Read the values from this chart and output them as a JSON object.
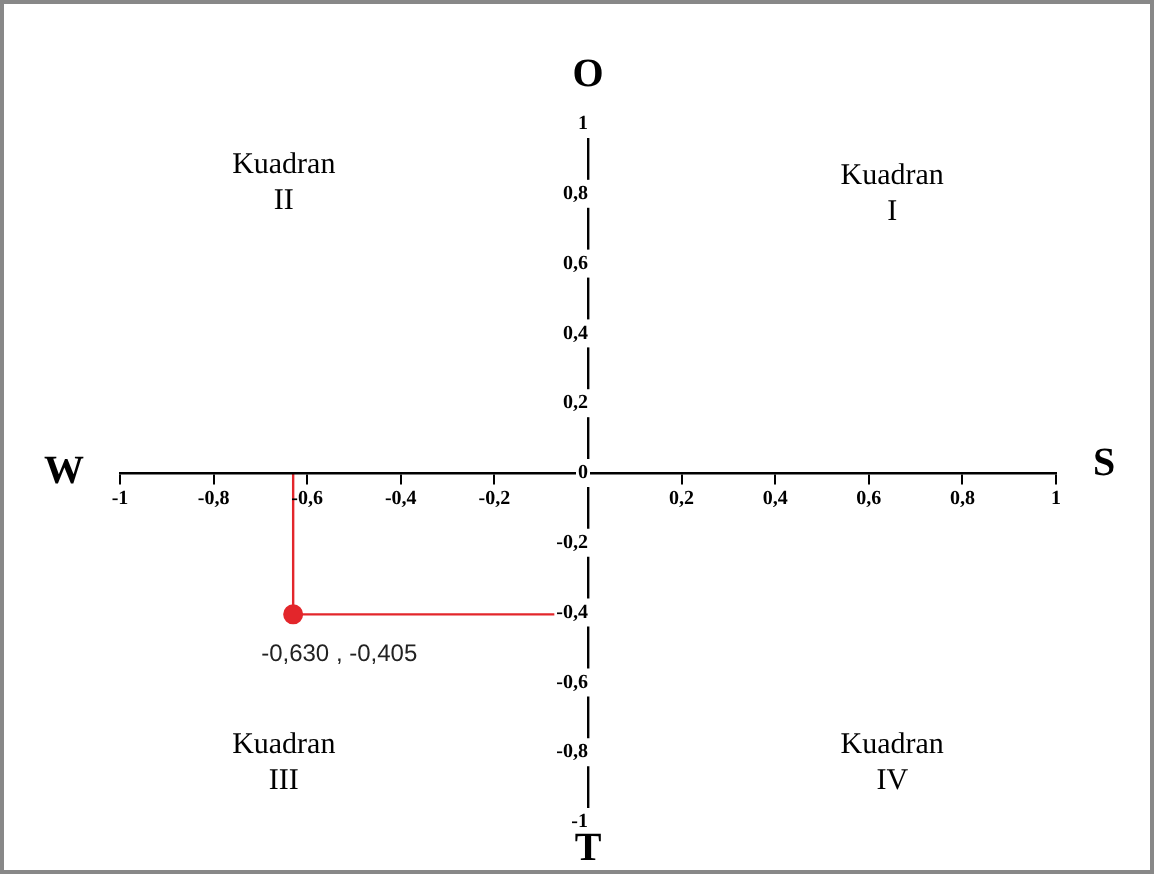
{
  "chart_data": {
    "type": "scatter",
    "x": [
      -0.63
    ],
    "values": [
      -0.405
    ],
    "color": "#e3262b",
    "value_labels": [
      "-0,630 , -0,405"
    ],
    "marker": "circle",
    "legend": false,
    "grid": false,
    "xlim": [
      -1,
      1
    ],
    "ylim": [
      -1,
      1
    ],
    "xticks": [
      {
        "value": -1,
        "label": "-1"
      },
      {
        "value": -0.8,
        "label": "-0,8"
      },
      {
        "value": -0.6,
        "label": "-0,6"
      },
      {
        "value": -0.4,
        "label": "-0,4"
      },
      {
        "value": -0.2,
        "label": "-0,2"
      },
      {
        "value": 0,
        "label": null
      },
      {
        "value": 0.2,
        "label": "0,2"
      },
      {
        "value": 0.4,
        "label": "0,4"
      },
      {
        "value": 0.6,
        "label": "0,6"
      },
      {
        "value": 0.8,
        "label": "0,8"
      },
      {
        "value": 1,
        "label": "1"
      }
    ],
    "yticks": [
      {
        "value": -1,
        "label": "-1"
      },
      {
        "value": -0.8,
        "label": "-0,8"
      },
      {
        "value": -0.6,
        "label": "-0,6"
      },
      {
        "value": -0.4,
        "label": "-0,4"
      },
      {
        "value": -0.2,
        "label": "-0,2"
      },
      {
        "value": 0,
        "label": "0"
      },
      {
        "value": 0.2,
        "label": "0,2"
      },
      {
        "value": 0.4,
        "label": "0,4"
      },
      {
        "value": 0.6,
        "label": "0,6"
      },
      {
        "value": 0.8,
        "label": "0,8"
      },
      {
        "value": 1,
        "label": "1"
      }
    ],
    "ref_lines": [
      {
        "axis": "x",
        "value": -0.63,
        "color": "#e3262b"
      },
      {
        "axis": "y",
        "value": -0.405,
        "color": "#e3262b"
      }
    ],
    "annotations": [
      "W",
      "S",
      "O",
      "T",
      "Kuadran\nI",
      "Kuadran\nII",
      "Kuadran\nIII",
      "Kuadran\nIV"
    ]
  }
}
